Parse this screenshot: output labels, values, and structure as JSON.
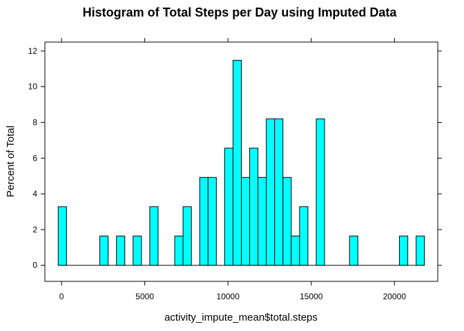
{
  "chart_data": {
    "type": "bar",
    "title": "Histogram of Total Steps per Day using Imputed Data",
    "xlabel": "activity_impute_mean$total.steps",
    "ylabel": "Percent of Total",
    "xlim": [
      -1000,
      22600
    ],
    "ylim": [
      -0.9,
      12.5
    ],
    "x_ticks": [
      0,
      5000,
      10000,
      15000,
      20000
    ],
    "x_tick_labels": [
      "0",
      "5000",
      "10000",
      "15000",
      "20000"
    ],
    "y_ticks": [
      0,
      2,
      4,
      6,
      8,
      10,
      12
    ],
    "y_tick_labels": [
      "0",
      "2",
      "4",
      "6",
      "8",
      "10",
      "12"
    ],
    "bin_start": -200,
    "bin_width": 500,
    "values": [
      3.28,
      0,
      0,
      0,
      0,
      1.64,
      0,
      1.64,
      0,
      1.64,
      0,
      3.28,
      0,
      0,
      1.64,
      3.28,
      0,
      4.92,
      4.92,
      0,
      6.56,
      11.48,
      4.92,
      6.56,
      4.92,
      8.2,
      8.2,
      4.92,
      1.64,
      3.28,
      0,
      8.2,
      0,
      0,
      0,
      1.64,
      0,
      0,
      0,
      0,
      0,
      1.64,
      0,
      1.64
    ],
    "grid": false,
    "colors": {
      "bar_fill": "#00ffff",
      "bar_stroke": "#000000"
    }
  }
}
